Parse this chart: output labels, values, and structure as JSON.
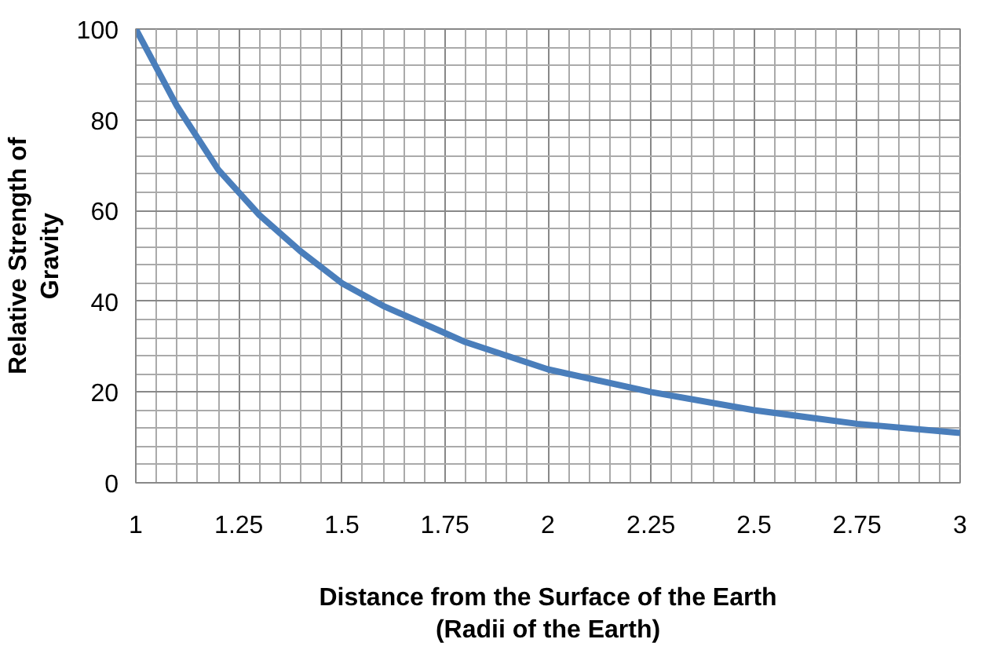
{
  "chart_data": {
    "type": "line",
    "xlabel": "Distance from the Surface of the Earth\n(Radii of the Earth)",
    "ylabel": "Relative Strength of\nGravity",
    "x": [
      1,
      1.1,
      1.2,
      1.25,
      1.3,
      1.4,
      1.5,
      1.6,
      1.75,
      1.8,
      2,
      2.25,
      2.5,
      2.75,
      3
    ],
    "series": [
      {
        "color": "#4a7ebb",
        "values": [
          100,
          83,
          69,
          64,
          59,
          51,
          44,
          39,
          33,
          31,
          25,
          20,
          16,
          13,
          11
        ]
      }
    ],
    "xlim": [
      1,
      3
    ],
    "xticks": [
      1,
      1.25,
      1.5,
      1.75,
      2,
      2.25,
      2.5,
      2.75,
      3
    ],
    "ylim": [
      0,
      100
    ],
    "yticks": [
      0,
      20,
      40,
      60,
      80,
      100
    ],
    "grid": true,
    "marker": "none",
    "line_style": "solid"
  }
}
